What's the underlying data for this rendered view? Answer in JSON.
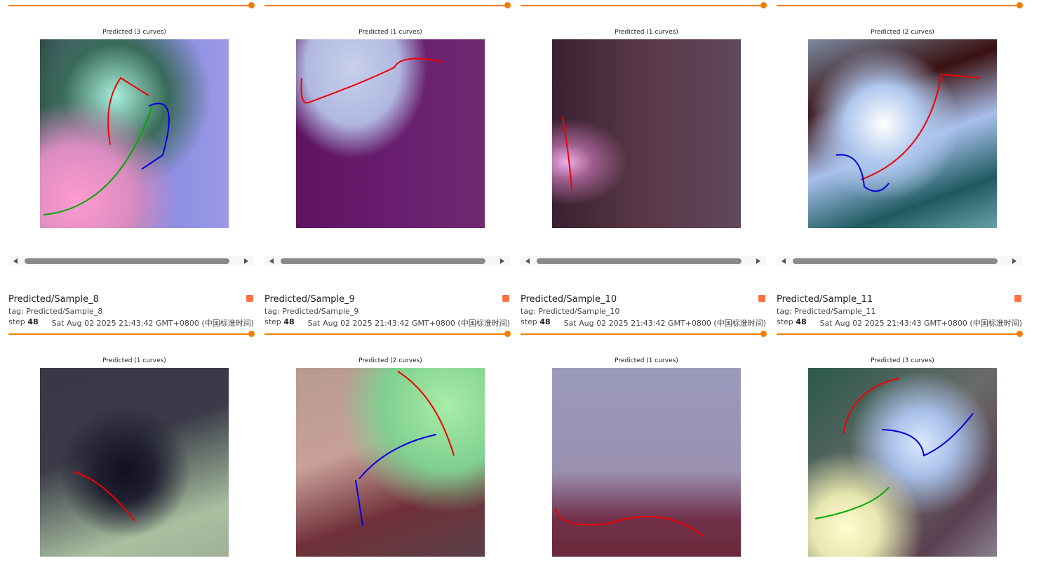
{
  "top_row": [
    {
      "image_title": "Predicted (3 curves)"
    },
    {
      "image_title": "Predicted (1 curves)"
    },
    {
      "image_title": "Predicted (1 curves)"
    },
    {
      "image_title": "Predicted (2 curves)"
    }
  ],
  "cards": [
    {
      "name": "Predicted/Sample_8",
      "tag": "tag: Predicted/Sample_8",
      "step_label": "step",
      "step": 48,
      "time": "Sat Aug 02 2025 21:43:42 GMT+0800 (中国标准时间)",
      "image_title": "Predicted (1 curves)"
    },
    {
      "name": "Predicted/Sample_9",
      "tag": "tag: Predicted/Sample_9",
      "step_label": "step",
      "step": 48,
      "time": "Sat Aug 02 2025 21:43:42 GMT+0800 (中国标准时间)",
      "image_title": "Predicted (2 curves)"
    },
    {
      "name": "Predicted/Sample_10",
      "tag": "tag: Predicted/Sample_10",
      "step_label": "step",
      "step": 48,
      "time": "Sat Aug 02 2025 21:43:42 GMT+0800 (中国标准时间)",
      "image_title": "Predicted (1 curves)"
    },
    {
      "name": "Predicted/Sample_11",
      "tag": "tag: Predicted/Sample_11",
      "step_label": "step",
      "step": 48,
      "time": "Sat Aug 02 2025 21:43:43 GMT+0800 (中国标准时间)",
      "image_title": "Predicted (3 curves)"
    }
  ]
}
